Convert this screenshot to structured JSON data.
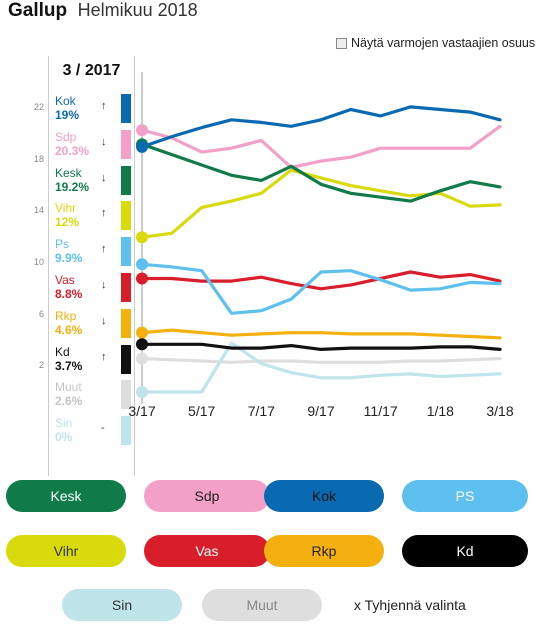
{
  "header": {
    "brand": "Gallup",
    "period": "Helmikuu 2018"
  },
  "toggle": {
    "label": "Näytä varmojen vastaajien osuus",
    "checked": false
  },
  "panel": {
    "title": "3 / 2017",
    "parties": [
      {
        "name": "Kok",
        "value": "19%",
        "arrow": "↑",
        "color": "#0a6ab1",
        "faded": false
      },
      {
        "name": "Sdp",
        "value": "20.3%",
        "arrow": "↓",
        "color": "#f2a0c8",
        "faded": false
      },
      {
        "name": "Kesk",
        "value": "19.2%",
        "arrow": "↓",
        "color": "#0e7b48",
        "faded": false
      },
      {
        "name": "Vihr",
        "value": "12%",
        "arrow": "↑",
        "color": "#d8da0c",
        "faded": false
      },
      {
        "name": "Ps",
        "value": "9.9%",
        "arrow": "↑",
        "color": "#5ec0ee",
        "faded": false
      },
      {
        "name": "Vas",
        "value": "8.8%",
        "arrow": "↓",
        "color": "#d81e2a",
        "faded": false
      },
      {
        "name": "Rkp",
        "value": "4.6%",
        "arrow": "↓",
        "color": "#f4b00e",
        "faded": false
      },
      {
        "name": "Kd",
        "value": "3.7%",
        "arrow": "↑",
        "color": "#111111",
        "faded": false
      },
      {
        "name": "Muut",
        "value": "2.6%",
        "arrow": "",
        "color": "#dedede",
        "faded": true
      },
      {
        "name": "Sin",
        "value": "0%",
        "arrow": "-",
        "color": "#bfe4ea",
        "faded": false
      }
    ]
  },
  "chart_data": {
    "type": "line",
    "x": [
      "3/17",
      "4/17",
      "5/17",
      "6/17",
      "7/17",
      "8/17",
      "9/17",
      "10/17",
      "11/17",
      "12/17",
      "1/18",
      "2/18",
      "3/18"
    ],
    "xticks": [
      "3/17",
      "5/17",
      "7/17",
      "9/17",
      "11/17",
      "1/18",
      "3/18"
    ],
    "yticks": [
      2,
      6,
      10,
      14,
      18,
      22
    ],
    "ylim": [
      0,
      23
    ],
    "grid": false,
    "highlight_x": "3/17",
    "series": [
      {
        "name": "Kok",
        "color": "#0a6ab1",
        "values": [
          19.0,
          19.8,
          20.5,
          21.1,
          20.9,
          20.6,
          21.1,
          21.9,
          21.4,
          22.1,
          21.9,
          21.7,
          21.1
        ]
      },
      {
        "name": "Sdp",
        "color": "#f2a0c8",
        "values": [
          20.3,
          19.7,
          18.6,
          18.9,
          19.5,
          17.4,
          17.9,
          18.2,
          18.9,
          18.9,
          18.9,
          18.9,
          20.6
        ]
      },
      {
        "name": "Kesk",
        "color": "#0e7b48",
        "values": [
          19.2,
          18.4,
          17.6,
          16.8,
          16.4,
          17.5,
          16.1,
          15.4,
          15.1,
          14.8,
          15.6,
          16.3,
          15.9
        ]
      },
      {
        "name": "Vihr",
        "color": "#d8da0c",
        "values": [
          12.0,
          12.3,
          14.3,
          14.8,
          15.4,
          17.2,
          16.6,
          16.0,
          15.6,
          15.2,
          15.4,
          14.4,
          14.5
        ]
      },
      {
        "name": "Ps",
        "color": "#5ec0ee",
        "values": [
          9.9,
          9.7,
          9.4,
          6.1,
          6.3,
          7.2,
          9.3,
          9.4,
          8.7,
          7.9,
          8.0,
          8.5,
          8.4
        ]
      },
      {
        "name": "Vas",
        "color": "#d81e2a",
        "values": [
          8.8,
          8.8,
          8.6,
          8.6,
          8.9,
          8.4,
          8.0,
          8.3,
          8.8,
          9.3,
          8.9,
          9.1,
          8.6
        ]
      },
      {
        "name": "Rkp",
        "color": "#f4b00e",
        "values": [
          4.6,
          4.8,
          4.6,
          4.4,
          4.5,
          4.6,
          4.6,
          4.5,
          4.5,
          4.5,
          4.4,
          4.3,
          4.2
        ]
      },
      {
        "name": "Kd",
        "color": "#111111",
        "values": [
          3.7,
          3.7,
          3.7,
          3.4,
          3.4,
          3.6,
          3.3,
          3.4,
          3.4,
          3.4,
          3.5,
          3.5,
          3.3
        ]
      },
      {
        "name": "Muut",
        "color": "#dedede",
        "values": [
          2.6,
          2.5,
          2.4,
          2.3,
          2.4,
          2.4,
          2.3,
          2.3,
          2.3,
          2.4,
          2.4,
          2.5,
          2.6
        ]
      },
      {
        "name": "Sin",
        "color": "#bfe4ea",
        "values": [
          0.0,
          0.0,
          0.0,
          3.8,
          2.2,
          1.5,
          1.1,
          1.1,
          1.3,
          1.4,
          1.2,
          1.3,
          1.4
        ]
      }
    ]
  },
  "buttons": [
    {
      "label": "Kesk",
      "bg": "#0e7b48",
      "fg": "#ffffff"
    },
    {
      "label": "Sdp",
      "bg": "#f2a0c8",
      "fg": "#222222"
    },
    {
      "label": "Kok",
      "bg": "#0a6ab1",
      "fg": "#111111"
    },
    {
      "label": "PS",
      "bg": "#5ec0ee",
      "fg": "#ffffff"
    },
    {
      "label": "Vihr",
      "bg": "#d8da0c",
      "fg": "#333333"
    },
    {
      "label": "Vas",
      "bg": "#d81e2a",
      "fg": "#ffffff"
    },
    {
      "label": "Rkp",
      "bg": "#f4b00e",
      "fg": "#222222"
    },
    {
      "label": "Kd",
      "bg": "#000000",
      "fg": "#ffffff"
    },
    {
      "label": "Sin",
      "bg": "#bfe4ea",
      "fg": "#333333"
    },
    {
      "label": "Muut",
      "bg": "#dedede",
      "fg": "#888888"
    }
  ],
  "clear": {
    "label": "x Tyhjennä valinta"
  }
}
